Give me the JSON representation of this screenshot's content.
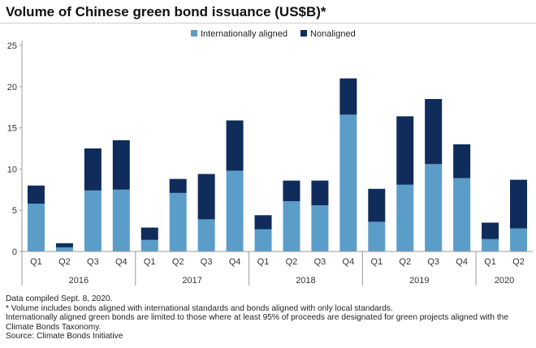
{
  "chart_data": {
    "type": "bar",
    "stacked": true,
    "title": "Volume of Chinese green bond issuance (US$B)*",
    "categories": [
      "Q1",
      "Q2",
      "Q3",
      "Q4",
      "Q1",
      "Q2",
      "Q3",
      "Q4",
      "Q1",
      "Q2",
      "Q3",
      "Q4",
      "Q1",
      "Q2",
      "Q3",
      "Q4",
      "Q1",
      "Q2"
    ],
    "groups": [
      {
        "label": "2016",
        "count": 4
      },
      {
        "label": "2017",
        "count": 4
      },
      {
        "label": "2018",
        "count": 4
      },
      {
        "label": "2019",
        "count": 4
      },
      {
        "label": "2020",
        "count": 2
      }
    ],
    "series": [
      {
        "name": "Internationally aligned",
        "color": "#5b9dc9",
        "values": [
          5.8,
          0.5,
          7.4,
          7.5,
          1.4,
          7.1,
          3.9,
          9.8,
          2.7,
          6.1,
          5.6,
          16.6,
          3.6,
          8.1,
          10.6,
          8.9,
          1.5,
          2.8
        ]
      },
      {
        "name": "Nonaligned",
        "color": "#0f2c5b",
        "values": [
          2.2,
          0.5,
          5.1,
          6.0,
          1.5,
          1.7,
          5.5,
          6.1,
          1.7,
          2.5,
          3.0,
          4.4,
          4.0,
          8.3,
          7.9,
          4.1,
          2.0,
          5.9
        ]
      }
    ],
    "ylim": [
      0,
      25
    ],
    "yticks": [
      0,
      5,
      10,
      15,
      20,
      25
    ],
    "xlabel": "",
    "ylabel": "",
    "grid": false,
    "legend": "top-center"
  },
  "notes": [
    "Data compiled Sept. 8, 2020.",
    "* Volume includes bonds aligned with international standards and bonds aligned with only local standards.",
    "Internationally aligned green bonds are limited to those where at least 95% of proceeds are designated for green projects aligned with the Climate Bonds Taxonomy.",
    "Source: Climate Bonds Initiative"
  ]
}
